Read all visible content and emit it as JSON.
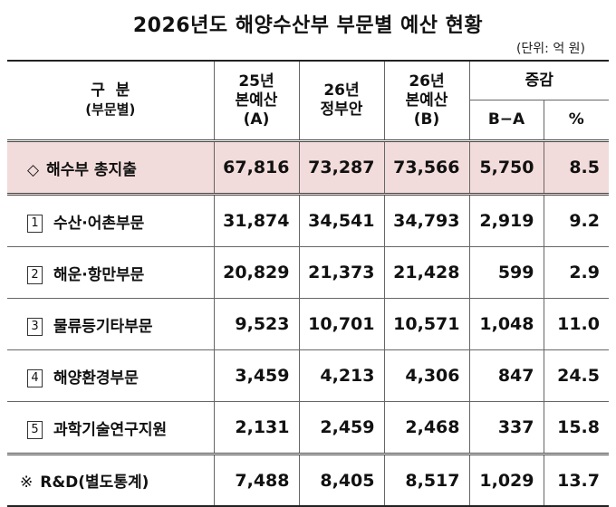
{
  "title": "2026년도 해양수산부 부문별 예산 현황",
  "unit": "(단위: 억 원)",
  "header": {
    "category_label": "구  분",
    "category_sub": "(부문별)",
    "col1": [
      "25년",
      "본예산",
      "(A)"
    ],
    "col2": [
      "26년",
      "정부안"
    ],
    "col3": [
      "26년",
      "본예산",
      "(B)"
    ],
    "change": "증감",
    "change_diff": "B−A",
    "change_pct": "%"
  },
  "rows": [
    {
      "marker": "◇",
      "name": "해수부 총지출",
      "a": "67,816",
      "gov": "73,287",
      "b": "73,566",
      "diff": "5,750",
      "pct": "8.5"
    },
    {
      "marker": "1",
      "name": "수산·어촌부문",
      "a": "31,874",
      "gov": "34,541",
      "b": "34,793",
      "diff": "2,919",
      "pct": "9.2"
    },
    {
      "marker": "2",
      "name": "해운·항만부문",
      "a": "20,829",
      "gov": "21,373",
      "b": "21,428",
      "diff": "599",
      "pct": "2.9"
    },
    {
      "marker": "3",
      "name": "물류등기타부문",
      "a": "9,523",
      "gov": "10,701",
      "b": "10,571",
      "diff": "1,048",
      "pct": "11.0"
    },
    {
      "marker": "4",
      "name": "해양환경부문",
      "a": "3,459",
      "gov": "4,213",
      "b": "4,306",
      "diff": "847",
      "pct": "24.5"
    },
    {
      "marker": "5",
      "name": "과학기술연구지원",
      "a": "2,131",
      "gov": "2,459",
      "b": "2,468",
      "diff": "337",
      "pct": "15.8"
    },
    {
      "marker": "※",
      "name": "R&D(별도통계)",
      "a": "7,488",
      "gov": "8,405",
      "b": "8,517",
      "diff": "1,029",
      "pct": "13.7"
    }
  ],
  "colors": {
    "highlight_row": "#f2dcdb"
  }
}
